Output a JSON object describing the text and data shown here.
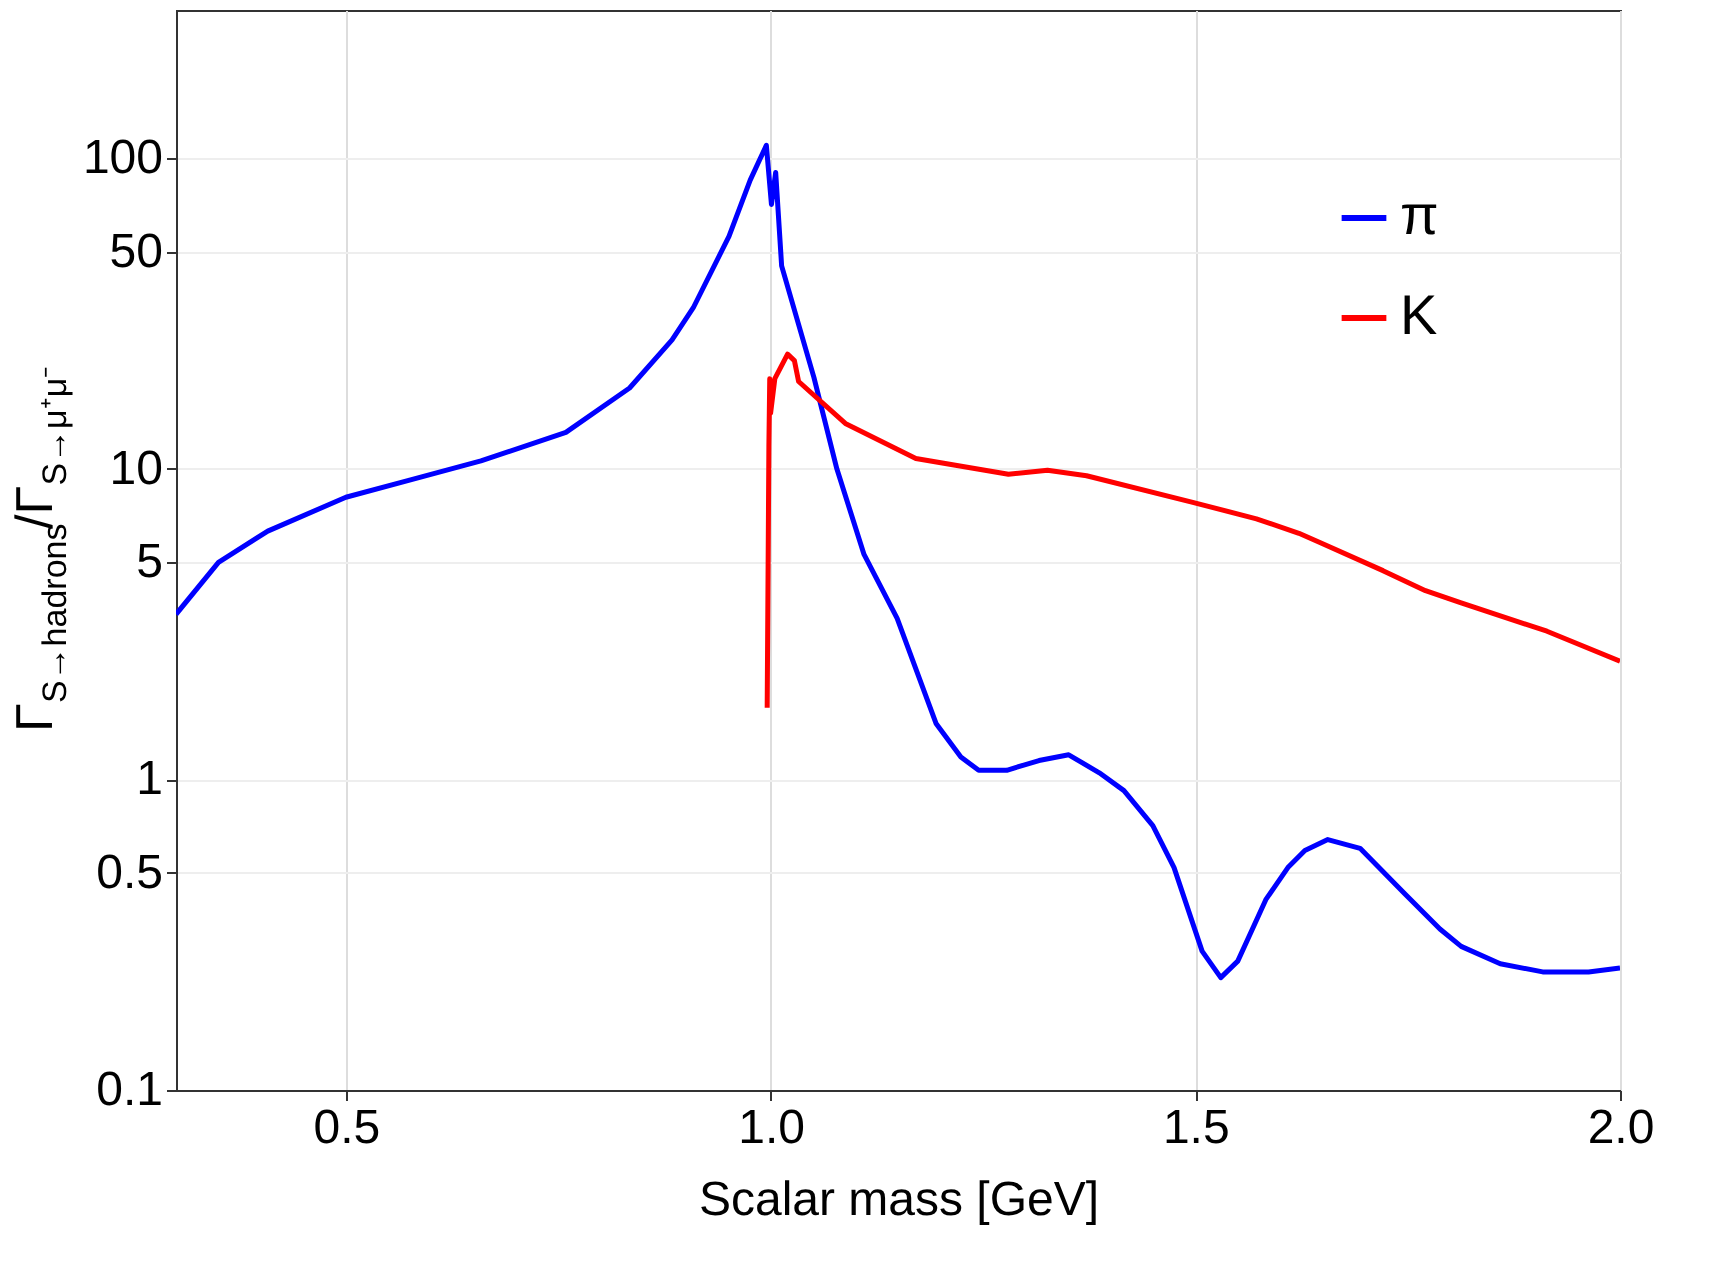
{
  "chart_data": {
    "type": "line",
    "xlabel": "Scalar mass [GeV]",
    "ylabel": "Γ$_{S→hadrons}$/Γ$_{S→μ⁺μ⁻}$",
    "xlim": [
      0.3,
      2.0
    ],
    "xticks": [
      0.5,
      {
        "value": 1.0,
        "label": "1.0"
      },
      1.5,
      {
        "value": 2.0,
        "label": "2.0"
      }
    ],
    "ylim": [
      0.1,
      300
    ],
    "yticks": [
      0.1,
      0.5,
      1,
      5,
      10,
      50,
      100
    ],
    "log": "y",
    "grid": true,
    "legend": "top right",
    "line_style": "solid",
    "marker": "none",
    "series": [
      {
        "name": "π",
        "color": "#0000ff",
        "x": [
          0.3,
          0.35,
          0.408,
          0.5,
          0.575,
          0.659,
          0.759,
          0.834,
          0.884,
          0.909,
          0.951,
          0.976,
          0.995,
          1.001,
          1.006,
          1.013,
          1.051,
          1.078,
          1.11,
          1.149,
          1.195,
          1.224,
          1.245,
          1.278,
          1.316,
          1.351,
          1.387,
          1.416,
          1.45,
          1.475,
          1.508,
          1.53,
          1.55,
          1.583,
          1.609,
          1.629,
          1.656,
          1.694,
          1.746,
          1.788,
          1.813,
          1.859,
          1.909,
          1.963,
          2.0
        ],
        "values": [
          3.4,
          5.0,
          6.3,
          8.1,
          9.2,
          10.6,
          13.1,
          18.2,
          26,
          33,
          56,
          85,
          110,
          71,
          90,
          45,
          19.7,
          10,
          5.3,
          3.3,
          1.51,
          1.18,
          1.07,
          1.07,
          1.15,
          1.2,
          1.05,
          0.92,
          0.71,
          0.52,
          0.28,
          0.23,
          0.26,
          0.41,
          0.52,
          0.59,
          0.64,
          0.6,
          0.43,
          0.33,
          0.29,
          0.255,
          0.24,
          0.24,
          0.247
        ]
      },
      {
        "name": "K",
        "color": "#ff0000",
        "x": [
          0.996,
          0.998,
          0.999,
          1.0,
          1.005,
          1.02,
          1.028,
          1.033,
          1.088,
          1.171,
          1.28,
          1.326,
          1.372,
          1.497,
          1.572,
          1.622,
          1.646,
          1.721,
          1.771,
          1.813,
          1.914,
          2.0
        ],
        "values": [
          1.7,
          11.8,
          19.5,
          15.1,
          19.5,
          23.4,
          22.3,
          19.1,
          14,
          10.8,
          9.6,
          9.9,
          9.5,
          7.8,
          6.9,
          6.2,
          5.8,
          4.7,
          4.05,
          3.7,
          3.0,
          2.4
        ]
      }
    ]
  }
}
